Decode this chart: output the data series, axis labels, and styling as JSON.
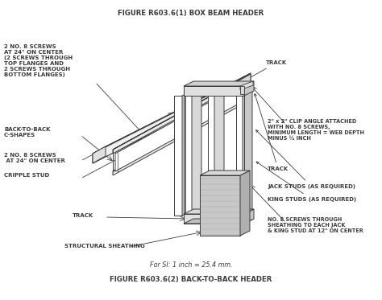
{
  "title_top": "FIGURE R603.6(1) BOX BEAM HEADER",
  "title_bottom": "FIGURE R603.6(2) BACK-TO-BACK HEADER",
  "si_note": "For SI: 1 inch = 25.4 mm.",
  "line_color": "#3a3a3a",
  "labels": {
    "track_top": "TRACK",
    "screws_top": "2 NO. 8 SCREWS\nAT 24\" ON CENTER\n(2 SCREWS THROUGH\nTOP FLANGES AND\n2 SCREWS THROUGH\nBOTTOM FLANGES)",
    "back_to_back": "BACK-TO-BACK\nC-SHAPES",
    "screws_mid": "2 NO. 8 SCREWS\n AT 24\" ON CENTER",
    "cripple_stud": "CRIPPLE STUD",
    "track_bot": "TRACK",
    "structural_sheathing": "STRUCTURAL SHEATHING",
    "clip_angle": "2\" x 2\" CLIP ANGLE ATTACHED\nWITH NO. 8 SCREWS,\nMINIMUM LENGTH = WEB DEPTH\nMINUS ½ INCH",
    "track_right": "TRACK",
    "jack_studs": "JACK STUDS (AS REQUIRED)",
    "king_studs": "KING STUDS (AS REQUIRED)",
    "no8_screws": "NO. 8 SCREWS THROUGH\nSHEATHING TO EACH JACK\n& KING STUD AT 12\" ON CENTER"
  },
  "figsize": [
    4.74,
    3.73
  ],
  "dpi": 100
}
